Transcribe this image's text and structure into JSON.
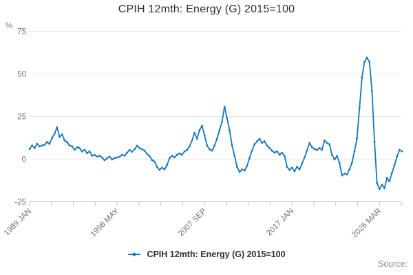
{
  "title": "CPIH 12mth: Energy (G) 2015=100",
  "legend": {
    "label": "CPIH 12mth: Energy (G) 2015=100"
  },
  "source_label": "Source:",
  "colors": {
    "series_line": "#1577bb",
    "grid": "#e6e6e6",
    "axis": "#b6c0d4",
    "tick_label": "#707070",
    "title_text": "#2e2e2e"
  },
  "chart_data": {
    "type": "line",
    "title": "CPIH 12mth: Energy (G) 2015=100",
    "xlabel": "",
    "ylabel": "%",
    "ylim": [
      -25,
      75
    ],
    "y_ticks": [
      75,
      50,
      25,
      0,
      -25
    ],
    "x_tick_labels": [
      "1989 JAN",
      "1998 MAY",
      "2007 SEP",
      "2017 JAN",
      "2026 MAR"
    ],
    "minor_ticks_per_major": 4,
    "total_minor_ticks": 18,
    "grid": true,
    "legend_position": "bottom",
    "series": [
      {
        "name": "CPIH 12mth: Energy (G) 2015=100",
        "start_year": 1989.0,
        "step_years": 0.25,
        "values": [
          6,
          8,
          6.5,
          9,
          7.5,
          8,
          8.5,
          10,
          9,
          12.5,
          15,
          18.7,
          13,
          14.5,
          11,
          10,
          8,
          7.5,
          5.5,
          7,
          6.5,
          4.5,
          5.5,
          3.5,
          4.5,
          2,
          2.5,
          1.5,
          2,
          1,
          -0.6,
          0.5,
          1.5,
          -0.2,
          0.6,
          1,
          1.4,
          2.6,
          2,
          3.8,
          5.4,
          4.3,
          5.8,
          7.9,
          6.5,
          5.8,
          5,
          3,
          1.8,
          -0.5,
          -1.4,
          -4.6,
          -6.3,
          -5,
          -6,
          -3.4,
          0.6,
          2,
          1,
          2.6,
          3.4,
          2.6,
          4.6,
          5.4,
          7.5,
          11,
          15.5,
          12,
          17,
          19.5,
          14,
          8,
          5.8,
          5,
          8,
          12,
          17,
          22,
          30.8,
          24,
          17,
          8,
          2,
          -4.6,
          -7.5,
          -6,
          -6.7,
          -4,
          0.6,
          5,
          8.7,
          10.5,
          11.9,
          9.5,
          10.5,
          7.9,
          6.5,
          5,
          3.8,
          4.6,
          2.6,
          3.8,
          2,
          -4.5,
          -6.3,
          -5,
          -7,
          -4.5,
          -6,
          -2.6,
          1,
          5,
          9.5,
          7,
          6,
          5.4,
          6.5,
          5.5,
          11,
          9.5,
          8.7,
          2.6,
          -0.2,
          1.8,
          -2.2,
          -9.5,
          -8.5,
          -9,
          -6,
          -2,
          4.6,
          12,
          30,
          48,
          57,
          59.5,
          57,
          40,
          10,
          -14,
          -17.5,
          -15,
          -17,
          -11,
          -13,
          -8,
          -3.5,
          1.4,
          5.4,
          4.6
        ]
      }
    ]
  }
}
